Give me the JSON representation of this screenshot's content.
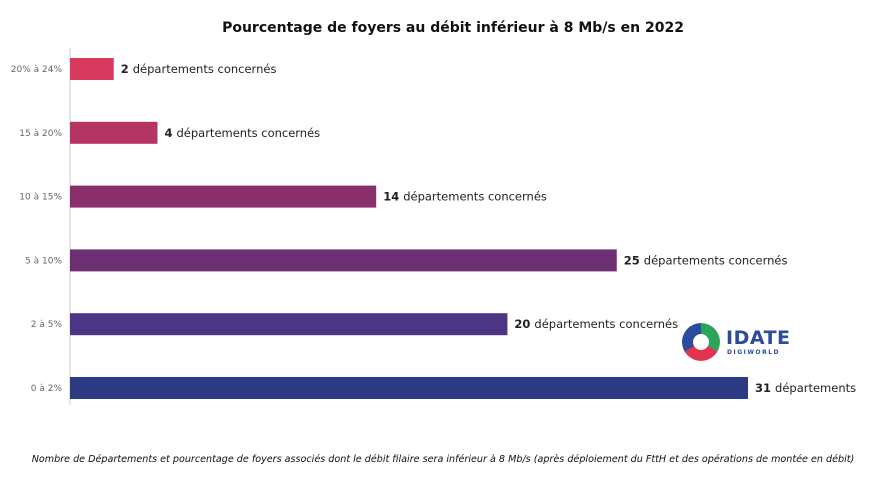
{
  "chart_data": {
    "type": "bar",
    "orientation": "horizontal",
    "title": "Pourcentage de foyers au débit inférieur à 8 Mb/s en 2022",
    "categories": [
      "20% à 24%",
      "15 à 20%",
      "10 à 15%",
      "5 à 10%",
      "2 à 5%",
      "0 à 2%"
    ],
    "values": [
      2,
      4,
      14,
      25,
      20,
      31
    ],
    "data_labels": [
      "départements concernés",
      "départements concernés",
      "départements concernés",
      "départements concernés",
      "départements concernés",
      "départements"
    ],
    "colors": [
      "#d83a5f",
      "#b53463",
      "#8a2f6c",
      "#6b2f72",
      "#4b3584",
      "#2b3a82"
    ],
    "xlim": [
      0,
      31
    ],
    "grid": false,
    "caption": "Nombre de Départements et pourcentage de foyers associés dont le débit filaire sera inférieur à 8 Mb/s (après déploiement du FttH et des opérations de montée en débit)"
  },
  "logo": {
    "name": "IDATE",
    "sub": "DIGIWORLD"
  }
}
